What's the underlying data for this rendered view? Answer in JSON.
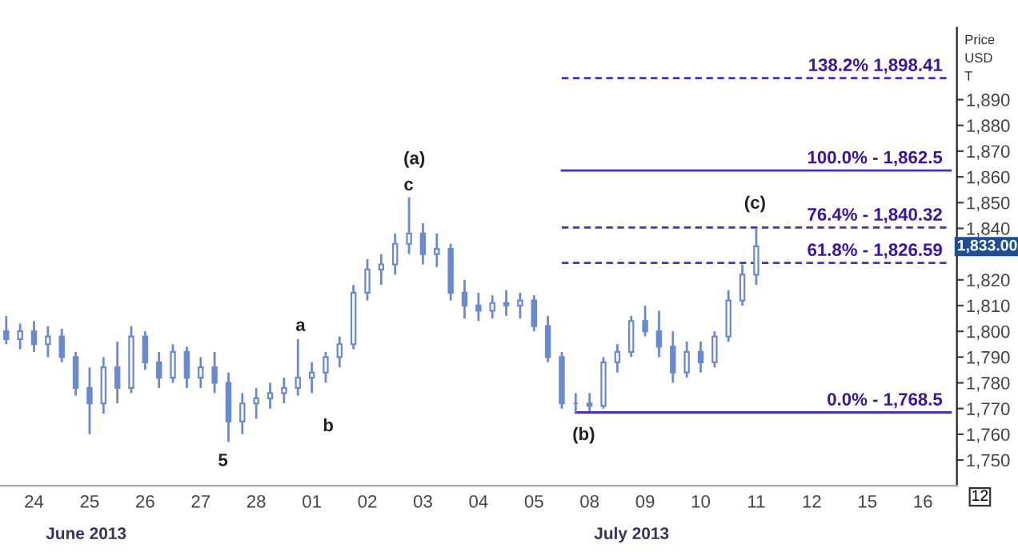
{
  "chart_data": {
    "type": "candlestick",
    "ylabel": "Price\nUSD\nT",
    "categories": [
      null,
      null,
      "24",
      null,
      null,
      null,
      "25",
      null,
      null,
      null,
      "26",
      null,
      null,
      null,
      "27",
      null,
      null,
      null,
      "28",
      null,
      null,
      null,
      "01",
      null,
      null,
      null,
      "02",
      null,
      null,
      null,
      "03",
      null,
      null,
      null,
      "04",
      null,
      null,
      null,
      "05",
      null,
      null,
      null,
      "08",
      null,
      null,
      null,
      "09",
      null,
      null,
      null,
      "10",
      null,
      null,
      null,
      "11",
      null,
      null,
      null,
      "12",
      null,
      null,
      null,
      "15",
      null,
      null,
      null,
      "16",
      null,
      null
    ],
    "ohlc": [
      [
        1800,
        1806,
        1795,
        1797
      ],
      [
        1797,
        1803,
        1793,
        1800
      ],
      [
        1800,
        1804,
        1792,
        1795
      ],
      [
        1795,
        1802,
        1790,
        1798
      ],
      [
        1798,
        1801,
        1788,
        1790
      ],
      [
        1790,
        1792,
        1775,
        1778
      ],
      [
        1778,
        1786,
        1760,
        1772
      ],
      [
        1772,
        1790,
        1768,
        1786
      ],
      [
        1786,
        1796,
        1772,
        1778
      ],
      [
        1778,
        1802,
        1776,
        1798
      ],
      [
        1798,
        1800,
        1785,
        1788
      ],
      [
        1788,
        1792,
        1778,
        1782
      ],
      [
        1782,
        1795,
        1780,
        1792
      ],
      [
        1792,
        1794,
        1778,
        1782
      ],
      [
        1782,
        1790,
        1778,
        1786
      ],
      [
        1786,
        1792,
        1776,
        1780
      ],
      [
        1780,
        1784,
        1757,
        1765
      ],
      [
        1765,
        1776,
        1760,
        1772
      ],
      [
        1772,
        1778,
        1766,
        1774
      ],
      [
        1774,
        1780,
        1770,
        1776
      ],
      [
        1776,
        1782,
        1772,
        1778
      ],
      [
        1778,
        1797,
        1775,
        1782
      ],
      [
        1782,
        1788,
        1776,
        1784
      ],
      [
        1784,
        1792,
        1780,
        1790
      ],
      [
        1790,
        1798,
        1786,
        1795
      ],
      [
        1795,
        1818,
        1793,
        1815
      ],
      [
        1815,
        1828,
        1812,
        1824
      ],
      [
        1824,
        1830,
        1818,
        1826
      ],
      [
        1826,
        1838,
        1822,
        1834
      ],
      [
        1834,
        1852,
        1830,
        1838
      ],
      [
        1838,
        1842,
        1826,
        1830
      ],
      [
        1830,
        1838,
        1825,
        1832
      ],
      [
        1832,
        1834,
        1812,
        1815
      ],
      [
        1815,
        1820,
        1805,
        1810
      ],
      [
        1810,
        1815,
        1804,
        1808
      ],
      [
        1808,
        1814,
        1805,
        1811
      ],
      [
        1811,
        1816,
        1806,
        1810
      ],
      [
        1810,
        1815,
        1805,
        1812
      ],
      [
        1812,
        1814,
        1800,
        1802
      ],
      [
        1802,
        1806,
        1788,
        1790
      ],
      [
        1790,
        1792,
        1770,
        1772
      ],
      [
        1772,
        1776,
        1768.5,
        1772
      ],
      [
        1772,
        1776,
        1769,
        1771
      ],
      [
        1771,
        1790,
        1770,
        1788
      ],
      [
        1788,
        1795,
        1784,
        1792
      ],
      [
        1792,
        1806,
        1790,
        1804
      ],
      [
        1804,
        1810,
        1798,
        1800
      ],
      [
        1800,
        1808,
        1790,
        1794
      ],
      [
        1794,
        1800,
        1780,
        1784
      ],
      [
        1784,
        1796,
        1782,
        1792
      ],
      [
        1792,
        1796,
        1784,
        1788
      ],
      [
        1788,
        1800,
        1786,
        1798
      ],
      [
        1798,
        1816,
        1796,
        1812
      ],
      [
        1812,
        1826,
        1810,
        1822
      ],
      [
        1822,
        1840,
        1818,
        1833
      ],
      null,
      null,
      null,
      null,
      null,
      null,
      null,
      null,
      null,
      null,
      null,
      null,
      null,
      null
    ],
    "color": "#6a8ad0",
    "series": [
      {
        "type": "line",
        "color": "#4a2fc0",
        "line_style": "dashed",
        "values": [
          null,
          null,
          null,
          null,
          null,
          null,
          null,
          null,
          null,
          null,
          null,
          null,
          null,
          null,
          null,
          null,
          null,
          null,
          null,
          null,
          null,
          null,
          null,
          null,
          null,
          null,
          null,
          null,
          null,
          null,
          null,
          null,
          null,
          null,
          null,
          null,
          null,
          null,
          null,
          null,
          1898.41,
          1898.41,
          1898.41,
          1898.41,
          1898.41,
          1898.41,
          1898.41,
          1898.41,
          1898.41,
          1898.41,
          1898.41,
          1898.41,
          1898.41,
          1898.41,
          1898.41,
          1898.41,
          1898.41,
          1898.41,
          1898.41,
          1898.41,
          1898.41,
          1898.41,
          1898.41,
          1898.41,
          1898.41,
          1898.41,
          1898.41,
          1898.41,
          1898.41
        ]
      },
      {
        "type": "line",
        "color": "#4a2fc0",
        "line_style": "solid",
        "values": [
          null,
          null,
          null,
          null,
          null,
          null,
          null,
          null,
          null,
          null,
          null,
          null,
          null,
          null,
          null,
          null,
          null,
          null,
          null,
          null,
          null,
          null,
          null,
          null,
          null,
          null,
          null,
          null,
          null,
          null,
          null,
          null,
          null,
          null,
          null,
          null,
          null,
          null,
          null,
          null,
          1862.5,
          1862.5,
          1862.5,
          1862.5,
          1862.5,
          1862.5,
          1862.5,
          1862.5,
          1862.5,
          1862.5,
          1862.5,
          1862.5,
          1862.5,
          1862.5,
          1862.5,
          1862.5,
          1862.5,
          1862.5,
          1862.5,
          1862.5,
          1862.5,
          1862.5,
          1862.5,
          1862.5,
          1862.5,
          1862.5,
          1862.5,
          1862.5,
          1862.5
        ]
      },
      {
        "type": "line",
        "color": "#4a2fc0",
        "line_style": "dashed",
        "values": [
          null,
          null,
          null,
          null,
          null,
          null,
          null,
          null,
          null,
          null,
          null,
          null,
          null,
          null,
          null,
          null,
          null,
          null,
          null,
          null,
          null,
          null,
          null,
          null,
          null,
          null,
          null,
          null,
          null,
          null,
          null,
          null,
          null,
          null,
          null,
          null,
          null,
          null,
          null,
          null,
          1840.32,
          1840.32,
          1840.32,
          1840.32,
          1840.32,
          1840.32,
          1840.32,
          1840.32,
          1840.32,
          1840.32,
          1840.32,
          1840.32,
          1840.32,
          1840.32,
          1840.32,
          1840.32,
          1840.32,
          1840.32,
          1840.32,
          1840.32,
          1840.32,
          1840.32,
          1840.32,
          1840.32,
          1840.32,
          1840.32,
          1840.32,
          1840.32,
          1840.32
        ]
      },
      {
        "type": "line",
        "color": "#4a2fc0",
        "line_style": "dashed",
        "values": [
          null,
          null,
          null,
          null,
          null,
          null,
          null,
          null,
          null,
          null,
          null,
          null,
          null,
          null,
          null,
          null,
          null,
          null,
          null,
          null,
          null,
          null,
          null,
          null,
          null,
          null,
          null,
          null,
          null,
          null,
          null,
          null,
          null,
          null,
          null,
          null,
          null,
          null,
          null,
          null,
          1826.59,
          1826.59,
          1826.59,
          1826.59,
          1826.59,
          1826.59,
          1826.59,
          1826.59,
          1826.59,
          1826.59,
          1826.59,
          1826.59,
          1826.59,
          1826.59,
          1826.59,
          1826.59,
          1826.59,
          1826.59,
          1826.59,
          1826.59,
          1826.59,
          1826.59,
          1826.59,
          1826.59,
          1826.59,
          1826.59,
          1826.59,
          1826.59,
          1826.59
        ]
      },
      {
        "type": "line",
        "color": "#4a2fc0",
        "line_style": "solid",
        "values": [
          null,
          null,
          null,
          null,
          null,
          null,
          null,
          null,
          null,
          null,
          null,
          null,
          null,
          null,
          null,
          null,
          null,
          null,
          null,
          null,
          null,
          null,
          null,
          null,
          null,
          null,
          null,
          null,
          null,
          null,
          null,
          null,
          null,
          null,
          null,
          null,
          null,
          null,
          null,
          null,
          null,
          1768.5,
          1768.5,
          1768.5,
          1768.5,
          1768.5,
          1768.5,
          1768.5,
          1768.5,
          1768.5,
          1768.5,
          1768.5,
          1768.5,
          1768.5,
          1768.5,
          1768.5,
          1768.5,
          1768.5,
          1768.5,
          1768.5,
          1768.5,
          1768.5,
          1768.5,
          1768.5,
          1768.5,
          1768.5,
          1768.5,
          1768.5,
          1768.5
        ]
      }
    ],
    "annotations": [
      {
        "text": "138.2% 1,898.41",
        "y": 1898.41
      },
      {
        "text": "100.0% - 1,862.5",
        "y": 1862.5
      },
      {
        "text": "76.4% - 1,840.32",
        "y": 1840.32
      },
      {
        "text": "61.8% - 1,826.59",
        "y": 1826.59
      },
      {
        "text": "0.0% - 1,768.5",
        "y": 1768.5
      },
      "(a)",
      "c",
      "a",
      "b",
      "5",
      "(b)",
      "(c)",
      "1,833.00",
      "June 2013",
      "July 2013",
      "12"
    ],
    "ylim": [
      1740,
      1918
    ],
    "yticks": [
      {
        "value": 1750,
        "label": "1,750"
      },
      {
        "value": 1760,
        "label": "1,760"
      },
      {
        "value": 1770,
        "label": "1,770"
      },
      {
        "value": 1780,
        "label": "1,780"
      },
      {
        "value": 1790,
        "label": "1,790"
      },
      {
        "value": 1800,
        "label": "1,800"
      },
      {
        "value": 1810,
        "label": "1,810"
      },
      {
        "value": 1820,
        "label": "1,820"
      },
      {
        "value": 1830,
        "label": null
      },
      {
        "value": 1840,
        "label": "1,840"
      },
      {
        "value": 1850,
        "label": "1,850"
      },
      {
        "value": 1860,
        "label": "1,860"
      },
      {
        "value": 1870,
        "label": "1,870"
      },
      {
        "value": 1880,
        "label": "1,880"
      },
      {
        "value": 1890,
        "label": "1,890"
      }
    ]
  }
}
